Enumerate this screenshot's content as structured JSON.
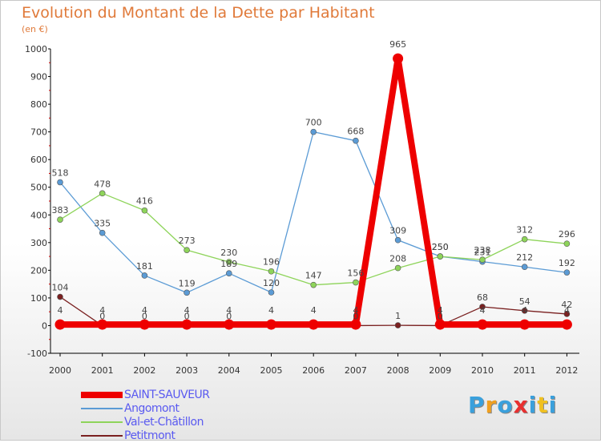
{
  "title": "Evolution du Montant de la Dette par Habitant",
  "unit_label": "(en €)",
  "logo": {
    "letters": [
      "P",
      "r",
      "o",
      "x",
      "i",
      "t",
      "i"
    ],
    "colors": [
      "#3aa0dc",
      "#f0a020",
      "#3aa0dc",
      "#e83030",
      "#3aa0dc",
      "#f0c020",
      "#3aa0dc"
    ]
  },
  "chart_data": {
    "type": "line",
    "title": "Evolution du Montant de la Dette par Habitant",
    "ylabel": "(en €)",
    "xlabel": "",
    "x": [
      "2000",
      "2001",
      "2002",
      "2003",
      "2004",
      "2005",
      "2006",
      "2007",
      "2008",
      "2009",
      "2010",
      "2011",
      "2012"
    ],
    "ylim": [
      -100,
      1000
    ],
    "yticks": [
      "-100",
      "0",
      "100",
      "200",
      "300",
      "400",
      "500",
      "600",
      "700",
      "800",
      "900",
      "1000"
    ],
    "grid": false,
    "legend_position": "bottom-left",
    "series": [
      {
        "name": "SAINT-SAUVEUR",
        "color": "#ee0000",
        "values": [
          4,
          4,
          4,
          4,
          4,
          4,
          4,
          4,
          965,
          4,
          4,
          4,
          4
        ],
        "labels": [
          "4",
          "4",
          "4",
          "4",
          "4",
          "4",
          "4",
          "4",
          "965",
          "4",
          "4",
          "4",
          "4"
        ]
      },
      {
        "name": "Angomont",
        "color": "#5b9bd5",
        "values": [
          518,
          335,
          181,
          119,
          189,
          120,
          700,
          668,
          309,
          250,
          231,
          212,
          192
        ],
        "labels": [
          "518",
          "335",
          "181",
          "119",
          "189",
          "120",
          "700",
          "668",
          "309",
          "250",
          "231",
          "212",
          "192"
        ]
      },
      {
        "name": "Val-et-Châtillon",
        "color": "#8ed45a",
        "values": [
          383,
          478,
          416,
          273,
          230,
          196,
          147,
          156,
          208,
          250,
          238,
          312,
          296
        ],
        "labels": [
          "383",
          "478",
          "416",
          "273",
          "230",
          "196",
          "147",
          "156",
          "208",
          "250",
          "238",
          "312",
          "296"
        ]
      },
      {
        "name": "Petitmont",
        "color": "#7a2020",
        "values": [
          104,
          0,
          0,
          0,
          0,
          0,
          0,
          0,
          1,
          0,
          68,
          54,
          42
        ],
        "labels": [
          "104",
          "0",
          "0",
          "0",
          "0",
          "",
          "",
          "0",
          "1",
          "0",
          "68",
          "54",
          "42"
        ]
      }
    ]
  }
}
